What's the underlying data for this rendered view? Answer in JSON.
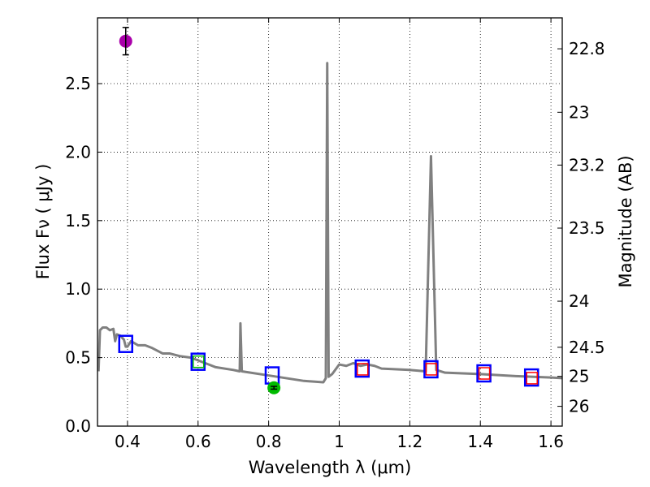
{
  "chart_data": {
    "type": "line",
    "title": "",
    "xlabel": "Wavelength  λ (μm)",
    "ylabel": "Flux  Fν  ( μJy )",
    "ylabel_right": "Magnitude (AB)",
    "xlim": [
      0.315,
      1.632
    ],
    "ylim": [
      0,
      2.98
    ],
    "grid": true,
    "xticks": [
      "0.4",
      "0.6",
      "0.8",
      "1",
      "1.2",
      "1.4",
      "1.6"
    ],
    "xtick_values": [
      0.4,
      0.6,
      0.8,
      1.0,
      1.2,
      1.4,
      1.6
    ],
    "yticks": [
      "0.0",
      "0.5",
      "1.0",
      "1.5",
      "2.0",
      "2.5"
    ],
    "ytick_values": [
      0,
      0.5,
      1.0,
      1.5,
      2.0,
      2.5
    ],
    "right_ticks": [
      "22.8",
      "23",
      "23.2",
      "23.5",
      "24",
      "24.5",
      "25",
      "26"
    ],
    "right_tick_values": [
      22.8,
      23,
      23.2,
      23.5,
      24,
      24.5,
      25,
      26
    ],
    "colors": {
      "spectrum": "#808080",
      "model_box": "#0000ff",
      "obs_box": "#ff0000",
      "green": "#00bb00",
      "purple": "#aa00aa"
    },
    "series": [
      {
        "name": "spectrum",
        "x": [
          0.318,
          0.322,
          0.33,
          0.34,
          0.35,
          0.36,
          0.365,
          0.37,
          0.38,
          0.39,
          0.395,
          0.4,
          0.41,
          0.43,
          0.45,
          0.47,
          0.5,
          0.52,
          0.55,
          0.58,
          0.6,
          0.65,
          0.7,
          0.718,
          0.72,
          0.724,
          0.8,
          0.9,
          0.955,
          0.962,
          0.966,
          0.97,
          0.98,
          1.0,
          1.02,
          1.04,
          1.06,
          1.08,
          1.1,
          1.12,
          1.2,
          1.245,
          1.26,
          1.275,
          1.3,
          1.4,
          1.5,
          1.6,
          1.632
        ],
        "y": [
          0.4,
          0.7,
          0.72,
          0.72,
          0.7,
          0.71,
          0.62,
          0.67,
          0.66,
          0.63,
          0.58,
          0.58,
          0.62,
          0.59,
          0.59,
          0.57,
          0.53,
          0.53,
          0.51,
          0.5,
          0.48,
          0.43,
          0.41,
          0.4,
          0.75,
          0.4,
          0.37,
          0.33,
          0.32,
          0.35,
          2.65,
          0.36,
          0.38,
          0.45,
          0.44,
          0.46,
          0.44,
          0.45,
          0.44,
          0.42,
          0.41,
          0.4,
          1.97,
          0.41,
          0.39,
          0.38,
          0.365,
          0.355,
          0.35
        ]
      },
      {
        "name": "model-photometry",
        "marker": "blue-square",
        "x": [
          0.395,
          0.6,
          0.81,
          1.065,
          1.26,
          1.41,
          1.545
        ],
        "y": [
          0.6,
          0.47,
          0.37,
          0.42,
          0.415,
          0.385,
          0.355
        ]
      },
      {
        "name": "observed-photometry",
        "marker": "red-square",
        "x": [
          1.065,
          1.26,
          1.41,
          1.545
        ],
        "y": [
          0.415,
          0.415,
          0.385,
          0.35
        ]
      },
      {
        "name": "green-square",
        "marker": "green-square",
        "x": [
          0.6
        ],
        "y": [
          0.47
        ]
      },
      {
        "name": "green-point",
        "marker": "green-circle",
        "x": [
          0.815
        ],
        "y": [
          0.28
        ],
        "err": [
          0.01
        ]
      },
      {
        "name": "purple-point",
        "marker": "purple-circle",
        "x": [
          0.395
        ],
        "y": [
          2.81
        ],
        "err": [
          0.1
        ]
      }
    ]
  }
}
